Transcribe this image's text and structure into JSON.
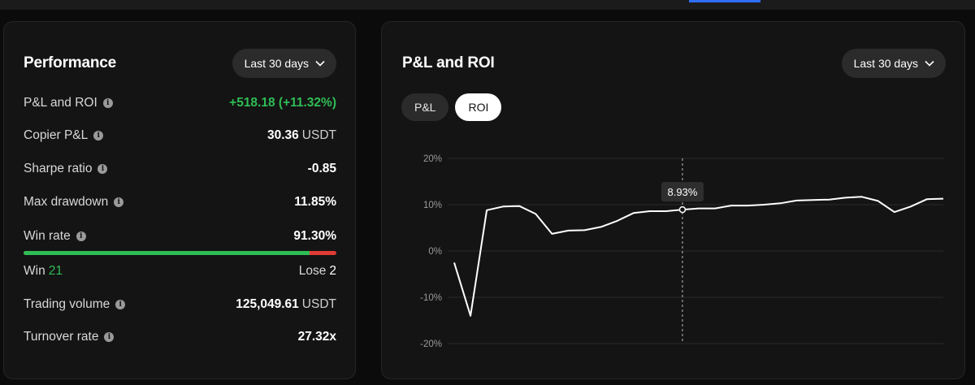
{
  "performance": {
    "title": "Performance",
    "period": "Last 30 days",
    "metrics": [
      {
        "label": "P&L and ROI",
        "value": "+518.18 (+11.32%)",
        "unit": "",
        "green": true
      },
      {
        "label": "Copier P&L",
        "value": "30.36",
        "unit": "USDT",
        "green": false
      },
      {
        "label": "Sharpe ratio",
        "value": "-0.85",
        "unit": "",
        "green": false
      },
      {
        "label": "Max drawdown",
        "value": "11.85%",
        "unit": "",
        "green": false
      },
      {
        "label": "Win rate",
        "value": "91.30%",
        "unit": "",
        "green": false
      }
    ],
    "win_rate_fraction": 0.913,
    "win_label": "Win",
    "win_count": "21",
    "lose_label": "Lose",
    "lose_count": "2",
    "bottom_metrics": [
      {
        "label": "Trading volume",
        "value": "125,049.61",
        "unit": "USDT"
      },
      {
        "label": "Turnover rate",
        "value": "27.32x",
        "unit": ""
      }
    ]
  },
  "pnl_roi": {
    "title": "P&L and ROI",
    "period": "Last 30 days",
    "tabs": {
      "pnl": "P&L",
      "roi": "ROI"
    },
    "active_tab": "ROI"
  },
  "chart_data": {
    "type": "line",
    "ylabel_ticks": [
      "20%",
      "10%",
      "0%",
      "-10%",
      "-20%"
    ],
    "ylim": [
      -20,
      20
    ],
    "grid": true,
    "series": [
      {
        "values": [
          -2.5,
          -14.0,
          8.8,
          9.6,
          9.7,
          8.0,
          3.7,
          4.4,
          4.5,
          5.2,
          6.5,
          8.2,
          8.6,
          8.6,
          8.93,
          9.2,
          9.2,
          9.8,
          9.8,
          10.0,
          10.3,
          10.9,
          11.0,
          11.1,
          11.5,
          11.7,
          10.8,
          8.4,
          9.6,
          11.2,
          11.3
        ]
      }
    ],
    "tooltip": {
      "index": 14,
      "label": "8.93%"
    }
  }
}
